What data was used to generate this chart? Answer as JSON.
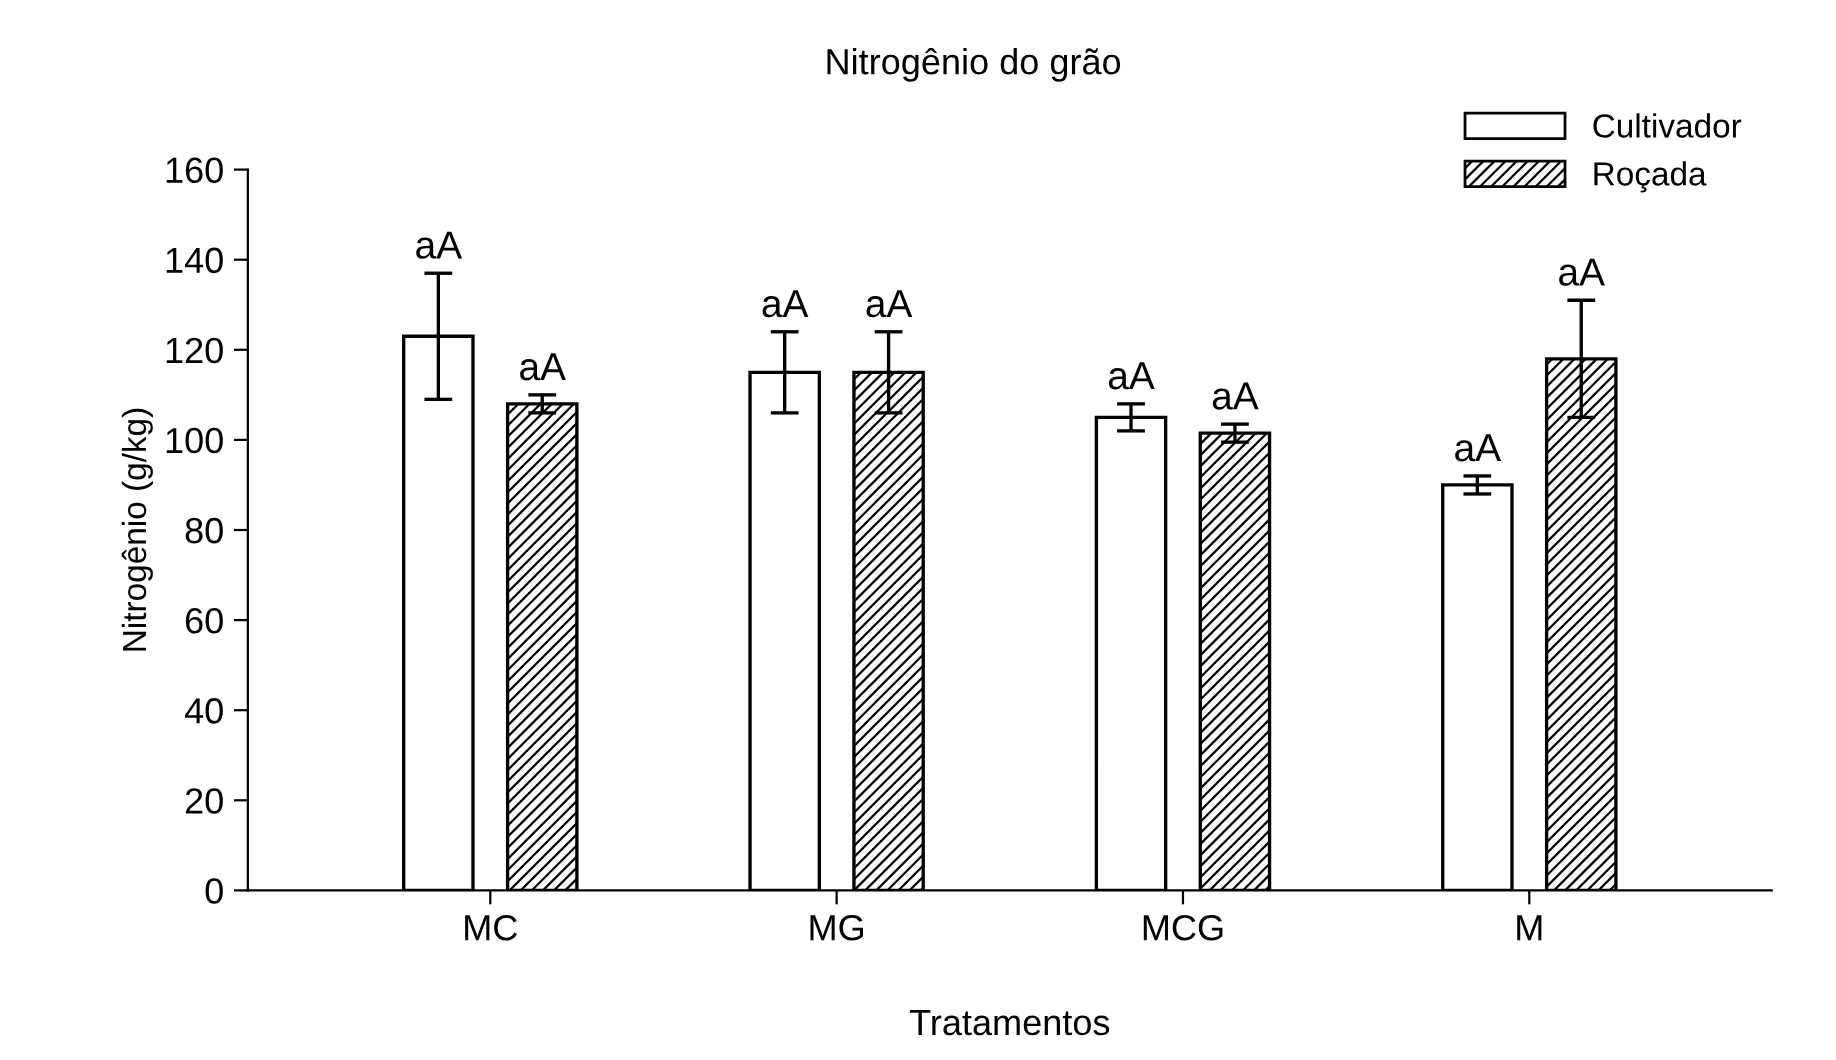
{
  "chart_data": {
    "type": "bar",
    "title": "Nitrogênio do grão",
    "xlabel": "Tratamentos",
    "ylabel": "Nitrogênio (g/kg)",
    "categories": [
      "MC",
      "MG",
      "MCG",
      "M"
    ],
    "series": [
      {
        "name": "Cultivador",
        "color": "#ffffff",
        "values": [
          123,
          115,
          105,
          90
        ],
        "errors": [
          14,
          9,
          3,
          2
        ],
        "value_labels": [
          "aA",
          "aA",
          "aA",
          "aA"
        ]
      },
      {
        "name": "Roçada",
        "color": "#000000",
        "values": [
          108,
          115,
          101.5,
          118
        ],
        "errors": [
          2,
          9,
          2,
          13
        ],
        "value_labels": [
          "aA",
          "aA",
          "aA",
          "aA"
        ]
      }
    ],
    "ylim": [
      0,
      160
    ],
    "yticks": [
      0,
      20,
      40,
      60,
      80,
      100,
      120,
      140,
      160
    ],
    "legend": "top right",
    "grid": false
  }
}
